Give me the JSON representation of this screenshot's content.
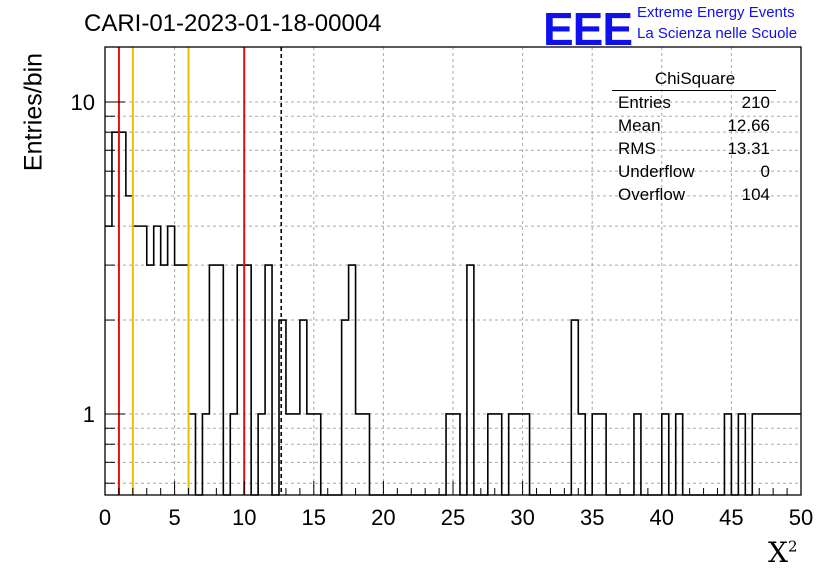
{
  "title": "CARI-01-2023-01-18-00004",
  "logo": {
    "mark": "EEE",
    "line1": "Extreme Energy Events",
    "line2": "La Scienza nelle Scuole",
    "color": "#1010ee"
  },
  "stats": {
    "title": "ChiSquare",
    "rows": [
      {
        "label": "Entries",
        "value": "210"
      },
      {
        "label": "Mean",
        "value": "12.66"
      },
      {
        "label": "RMS",
        "value": "13.31"
      },
      {
        "label": "Underflow",
        "value": "0"
      },
      {
        "label": "Overflow",
        "value": "104"
      }
    ]
  },
  "chart_data": {
    "type": "histogram",
    "ylabel": "Entries/bin",
    "xlabel": "X",
    "xlabel_sup": "2",
    "xlim": [
      0,
      50
    ],
    "ylim": [
      0.55,
      15
    ],
    "yscale": "log",
    "grid": true,
    "bin_width": 1,
    "x_ticks": [
      "0",
      "5",
      "10",
      "15",
      "20",
      "25",
      "30",
      "35",
      "40",
      "45",
      "50"
    ],
    "y_ticks": [
      "1",
      "10"
    ],
    "steps": [
      [
        0,
        4
      ],
      [
        0.5,
        8
      ],
      [
        1,
        8
      ],
      [
        1.5,
        5
      ],
      [
        2,
        4
      ],
      [
        2.5,
        4
      ],
      [
        3,
        3
      ],
      [
        3.5,
        4
      ],
      [
        4,
        3
      ],
      [
        4.5,
        4
      ],
      [
        5,
        3
      ],
      [
        5.5,
        3
      ],
      [
        6,
        1
      ],
      [
        6.5,
        0
      ],
      [
        7,
        1
      ],
      [
        7.5,
        3
      ],
      [
        8,
        3
      ],
      [
        8.5,
        0
      ],
      [
        9,
        1
      ],
      [
        9.5,
        3
      ],
      [
        10,
        3
      ],
      [
        10.5,
        0
      ],
      [
        11,
        1
      ],
      [
        11.5,
        3
      ],
      [
        12,
        0
      ],
      [
        12.5,
        2
      ],
      [
        13,
        1
      ],
      [
        13.5,
        1
      ],
      [
        14,
        2
      ],
      [
        14.5,
        1
      ],
      [
        15,
        1
      ],
      [
        15.5,
        0
      ],
      [
        16,
        0
      ],
      [
        16.5,
        0
      ],
      [
        17,
        2
      ],
      [
        17.5,
        3
      ],
      [
        18,
        1
      ],
      [
        18.5,
        1
      ],
      [
        19,
        0
      ],
      [
        19.5,
        0
      ],
      [
        20,
        0
      ],
      [
        20.5,
        0
      ],
      [
        21,
        0
      ],
      [
        21.5,
        0
      ],
      [
        22,
        0
      ],
      [
        22.5,
        0
      ],
      [
        23,
        0
      ],
      [
        23.5,
        0
      ],
      [
        24,
        0
      ],
      [
        24.5,
        1
      ],
      [
        25,
        1
      ],
      [
        25.5,
        0
      ],
      [
        26,
        3
      ],
      [
        26.5,
        0
      ],
      [
        27,
        0
      ],
      [
        27.5,
        1
      ],
      [
        28,
        1
      ],
      [
        28.5,
        0
      ],
      [
        29,
        1
      ],
      [
        29.5,
        1
      ],
      [
        30,
        1
      ],
      [
        30.5,
        0
      ],
      [
        31,
        0
      ],
      [
        31.5,
        0
      ],
      [
        32,
        0
      ],
      [
        32.5,
        0
      ],
      [
        33,
        0
      ],
      [
        33.5,
        2
      ],
      [
        34,
        1
      ],
      [
        34.5,
        0
      ],
      [
        35,
        1
      ],
      [
        35.5,
        1
      ],
      [
        36,
        0
      ],
      [
        36.5,
        0
      ],
      [
        37,
        0
      ],
      [
        37.5,
        0
      ],
      [
        38,
        1
      ],
      [
        38.5,
        0
      ],
      [
        39,
        0
      ],
      [
        39.5,
        0
      ],
      [
        40,
        1
      ],
      [
        40.5,
        0
      ],
      [
        41,
        1
      ],
      [
        41.5,
        0
      ],
      [
        42,
        0
      ],
      [
        42.5,
        0
      ],
      [
        43,
        0
      ],
      [
        43.5,
        0
      ],
      [
        44,
        0
      ],
      [
        44.5,
        1
      ],
      [
        45,
        0
      ],
      [
        45.5,
        1
      ],
      [
        46,
        0
      ],
      [
        46.5,
        1
      ],
      [
        47,
        1
      ],
      [
        47.5,
        1
      ],
      [
        48,
        1
      ],
      [
        48.5,
        1
      ],
      [
        49,
        1
      ],
      [
        49.5,
        1
      ]
    ],
    "vlines": [
      {
        "x": 1,
        "color": "#dd1111",
        "style": "solid"
      },
      {
        "x": 2,
        "color": "#e8c000",
        "style": "solid"
      },
      {
        "x": 6,
        "color": "#e8c000",
        "style": "solid"
      },
      {
        "x": 10,
        "color": "#dd1111",
        "style": "solid"
      },
      {
        "x": 12.66,
        "color": "#000000",
        "style": "dashed"
      }
    ]
  }
}
